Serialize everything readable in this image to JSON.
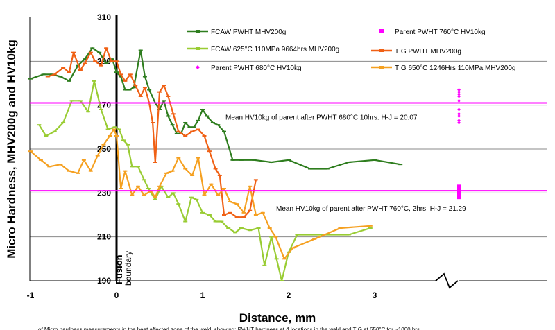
{
  "chart_data": {
    "type": "line",
    "xlabel": "Distance, mm",
    "ylabel": "Micro Hardness, MHV200g and HV10kg",
    "xlim": [
      -1,
      5
    ],
    "ylim": [
      190,
      310
    ],
    "x_ticks": [
      "-1",
      "0",
      "1",
      "2",
      "3"
    ],
    "y_ticks": [
      "190",
      "210",
      "230",
      "250",
      "270",
      "290",
      "310"
    ],
    "grid": "horizontal",
    "legend_position": "top",
    "fusion_label": "Fusion boundary",
    "axis_break_marker": true,
    "caption": "of Micro hardness measurements in the heat affected zone of the weld, showing: PWHT hardness at 4 locations in the weld and TIG at 650°C for ~1000 hrs",
    "series": [
      {
        "name": "FCAW PWHT MHV200g",
        "color": "#2e7d1e",
        "marker": "dash",
        "x": [
          -1.0,
          -0.85,
          -0.75,
          -0.65,
          -0.55,
          -0.45,
          -0.37,
          -0.28,
          -0.2,
          -0.12,
          -0.05,
          0.0,
          0.05,
          0.1,
          0.15,
          0.2,
          0.28,
          0.33,
          0.38,
          0.45,
          0.5,
          0.55,
          0.6,
          0.65,
          0.7,
          0.75,
          0.8,
          0.85,
          0.9,
          0.95,
          1.0,
          1.05,
          1.12,
          1.18,
          1.25,
          1.35,
          1.45,
          1.6,
          1.8,
          2.0,
          2.25,
          2.45,
          2.7,
          3.0,
          3.3
        ],
        "values": [
          282,
          284,
          284,
          283,
          281,
          288,
          291,
          296,
          294,
          289,
          291,
          285,
          283,
          277,
          277,
          278,
          295,
          283,
          277,
          271,
          268,
          272,
          265,
          261,
          257,
          257,
          262,
          260,
          260,
          263,
          268,
          265,
          262,
          261,
          258,
          245,
          245,
          245,
          244,
          245,
          241,
          241,
          244,
          245,
          243
        ]
      },
      {
        "name": "FCAW 625°C 110MPa 9664hrs MHV200g",
        "color": "#99cc33",
        "marker": "dash",
        "x": [
          -0.9,
          -0.82,
          -0.72,
          -0.62,
          -0.52,
          -0.42,
          -0.33,
          -0.26,
          -0.18,
          -0.1,
          -0.02,
          0.03,
          0.08,
          0.13,
          0.18,
          0.25,
          0.32,
          0.37,
          0.45,
          0.52,
          0.6,
          0.66,
          0.72,
          0.8,
          0.87,
          0.93,
          1.0,
          1.08,
          1.15,
          1.22,
          1.3,
          1.38,
          1.45,
          1.55,
          1.65,
          1.72,
          1.8,
          1.86,
          1.92,
          2.0,
          2.1,
          2.4,
          2.7,
          2.95
        ],
        "values": [
          261,
          256,
          258,
          262,
          272,
          272,
          267,
          281,
          268,
          259,
          260,
          259,
          254,
          252,
          242,
          242,
          236,
          232,
          227,
          233,
          228,
          230,
          225,
          217,
          228,
          227,
          221,
          220,
          217,
          217,
          214,
          212,
          214,
          213,
          214,
          197,
          210,
          200,
          190,
          203,
          211,
          211,
          211,
          214
        ]
      },
      {
        "name": "TIG PWHT MHV200g",
        "color": "#f06014",
        "marker": "dash",
        "x": [
          -0.8,
          -0.72,
          -0.62,
          -0.55,
          -0.5,
          -0.42,
          -0.37,
          -0.3,
          -0.25,
          -0.18,
          -0.12,
          -0.06,
          0.0,
          0.05,
          0.1,
          0.16,
          0.22,
          0.28,
          0.33,
          0.38,
          0.42,
          0.45,
          0.5,
          0.55,
          0.6,
          0.66,
          0.72,
          0.8,
          0.88,
          0.95,
          1.02,
          1.08,
          1.15,
          1.2,
          1.25,
          1.32,
          1.4,
          1.48,
          1.55,
          1.62
        ],
        "values": [
          283,
          284,
          287,
          285,
          294,
          286,
          289,
          294,
          290,
          288,
          296,
          290,
          290,
          284,
          281,
          284,
          279,
          274,
          278,
          271,
          262,
          244,
          276,
          279,
          274,
          266,
          258,
          256,
          258,
          259,
          256,
          249,
          241,
          238,
          220,
          221,
          219,
          219,
          222,
          236
        ]
      },
      {
        "name": "TIG 650°C 1246Hrs 110MPa MHV200g",
        "color": "#f5a020",
        "marker": "dash",
        "x": [
          -1.0,
          -0.88,
          -0.78,
          -0.65,
          -0.55,
          -0.45,
          -0.38,
          -0.3,
          -0.22,
          -0.15,
          -0.08,
          -0.03,
          0.0,
          0.05,
          0.1,
          0.18,
          0.25,
          0.32,
          0.4,
          0.45,
          0.5,
          0.58,
          0.65,
          0.72,
          0.8,
          0.88,
          0.95,
          1.02,
          1.1,
          1.18,
          1.25,
          1.32,
          1.4,
          1.48,
          1.55,
          1.62,
          1.7,
          1.78,
          1.85,
          1.95,
          2.05,
          2.3,
          2.6,
          2.95
        ],
        "values": [
          249,
          245,
          242,
          243,
          240,
          239,
          245,
          240,
          247,
          252,
          256,
          259,
          256,
          232,
          240,
          229,
          233,
          229,
          231,
          228,
          233,
          239,
          240,
          246,
          241,
          238,
          246,
          229,
          234,
          229,
          232,
          226,
          225,
          221,
          233,
          220,
          221,
          214,
          210,
          200,
          205,
          209,
          214,
          215
        ]
      },
      {
        "name": "Parent PWHT 760°C HV10kg",
        "color": "#ff00ff",
        "marker": "square",
        "x": [
          3.98,
          3.98,
          3.98,
          3.98,
          3.98,
          3.98
        ],
        "values": [
          233,
          232,
          231,
          230,
          229,
          228
        ]
      },
      {
        "name": "Parent PWHT 680°C HV10kg",
        "color": "#ff00ff",
        "marker": "diamond",
        "x": [
          3.98,
          3.98,
          3.98,
          3.98,
          3.98,
          3.98,
          3.98,
          3.98,
          3.98,
          3.98
        ],
        "values": [
          277,
          276,
          275,
          274,
          272,
          268,
          266,
          265,
          263,
          262
        ]
      }
    ],
    "reference_lines": [
      {
        "value": 271,
        "color": "#ff00ff",
        "label": "Mean HV10kg of parent after PWHT 680°C 10hrs. H-J = 20.07"
      },
      {
        "value": 231,
        "color": "#ff00ff",
        "label": "Mean HV10kg of parent after PWHT 760°C, 2hrs. H-J = 21.29"
      }
    ]
  }
}
